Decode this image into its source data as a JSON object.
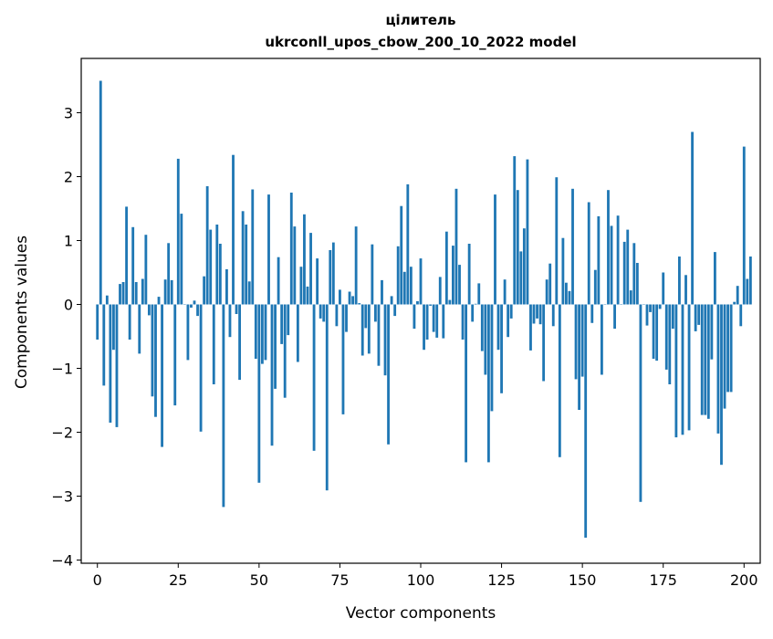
{
  "chart_data": {
    "type": "bar",
    "title": "цілитель",
    "subtitle": "ukrconll_upos_cbow_200_10_2022 model",
    "xlabel": "Vector components",
    "ylabel": "Components values",
    "xlim": [
      -5,
      205
    ],
    "ylim": [
      -4.05,
      3.85
    ],
    "xticks": [
      0,
      25,
      50,
      75,
      100,
      125,
      150,
      175,
      200
    ],
    "yticks": [
      -4,
      -3,
      -2,
      -1,
      0,
      1,
      2,
      3
    ],
    "ytick_labels": [
      "−4",
      "−3",
      "−2",
      "−1",
      "0",
      "1",
      "2",
      "3"
    ],
    "grid": false,
    "bar_color": "#1f77b4",
    "values": [
      -0.55,
      3.5,
      -1.27,
      0.14,
      -1.85,
      -0.71,
      -1.92,
      0.32,
      0.35,
      1.53,
      -0.55,
      1.21,
      0.35,
      -0.77,
      0.4,
      1.09,
      -0.17,
      -1.44,
      -1.76,
      0.12,
      -2.23,
      0.39,
      0.96,
      0.38,
      -1.58,
      2.28,
      1.42,
      0.0,
      -0.87,
      -0.05,
      0.06,
      -0.18,
      -1.99,
      0.44,
      1.85,
      1.17,
      -1.25,
      1.25,
      0.95,
      -3.17,
      0.55,
      -0.51,
      2.34,
      -0.15,
      -1.18,
      1.46,
      1.25,
      0.36,
      1.8,
      -0.85,
      -2.79,
      -0.93,
      -0.87,
      1.72,
      -2.21,
      -1.32,
      0.74,
      -0.62,
      -1.46,
      -0.48,
      1.75,
      1.22,
      -0.9,
      0.59,
      1.41,
      0.28,
      1.12,
      -2.29,
      0.72,
      -0.22,
      -0.27,
      -2.91,
      0.85,
      0.97,
      -0.34,
      0.23,
      -1.72,
      -0.43,
      0.2,
      0.13,
      1.22,
      0.02,
      -0.8,
      -0.37,
      -0.77,
      0.94,
      -0.27,
      -0.96,
      0.38,
      -1.11,
      -2.19,
      0.13,
      -0.18,
      0.91,
      1.54,
      0.51,
      1.88,
      0.59,
      -0.38,
      0.05,
      0.72,
      -0.71,
      -0.55,
      -0.02,
      -0.43,
      -0.52,
      0.43,
      -0.53,
      1.14,
      0.07,
      0.92,
      1.81,
      0.62,
      -0.55,
      -2.47,
      0.95,
      -0.27,
      0.01,
      0.33,
      -0.73,
      -1.1,
      -2.47,
      -1.67,
      1.72,
      -0.71,
      -1.39,
      0.39,
      -0.51,
      -0.22,
      2.32,
      1.79,
      0.83,
      1.19,
      2.27,
      -0.72,
      -0.3,
      -0.22,
      -0.31,
      -1.2,
      0.39,
      0.64,
      -0.34,
      1.99,
      -2.39,
      1.04,
      0.34,
      0.21,
      1.81,
      -1.17,
      -1.65,
      -1.13,
      -3.65,
      1.6,
      -0.29,
      0.54,
      1.38,
      -1.1,
      0.0,
      1.79,
      1.23,
      -0.38,
      1.39,
      0.0,
      0.98,
      1.17,
      0.22,
      0.96,
      0.65,
      -3.09,
      0.0,
      -0.33,
      -0.12,
      -0.85,
      -0.88,
      -0.07,
      0.5,
      -1.02,
      -1.25,
      -0.38,
      -2.08,
      0.75,
      -2.04,
      0.46,
      -1.97,
      2.7,
      -0.42,
      -0.32,
      -1.73,
      -1.73,
      -1.79,
      -0.86,
      0.82,
      -2.02,
      -2.51,
      -1.63,
      -1.37,
      -1.37,
      0.04,
      0.29,
      -0.34,
      2.47,
      0.4,
      0.75
    ]
  }
}
